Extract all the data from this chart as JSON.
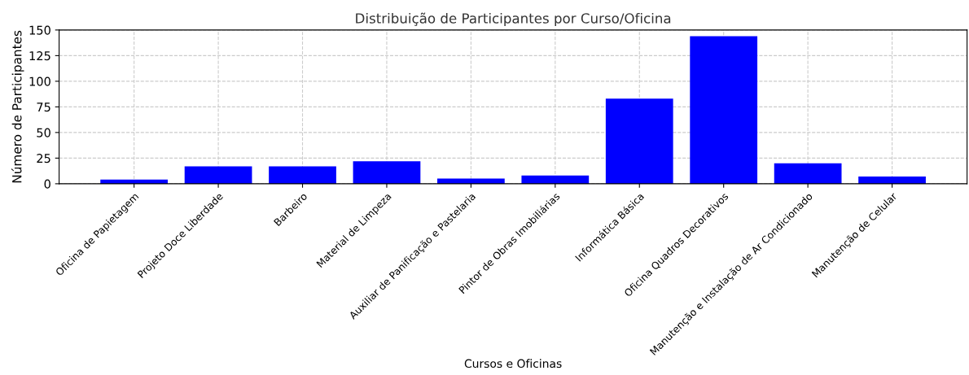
{
  "chart_data": {
    "type": "bar",
    "title": "Distribuição de Participantes por Curso/Oficina",
    "xlabel": "Cursos e Oficinas",
    "ylabel": "Número de Participantes",
    "categories": [
      "Oficina de Papietagem",
      "Projeto Doce Liberdade",
      "Barbeiro",
      "Material de Limpeza",
      "Auxiliar de Panificação e Pastelaria",
      "Pintor de Obras Imobiliárias",
      "Informática Básica",
      "Oficina Quadros Decorativos",
      "Manutenção e Instalação de Ar Condicionado",
      "Manutenção de Celular"
    ],
    "values": [
      4,
      17,
      17,
      22,
      5,
      8,
      83,
      144,
      20,
      7
    ],
    "color": "#0000ff",
    "ylim": [
      0,
      150
    ],
    "yticks": [
      0,
      25,
      50,
      75,
      100,
      125,
      150
    ],
    "grid": true
  }
}
